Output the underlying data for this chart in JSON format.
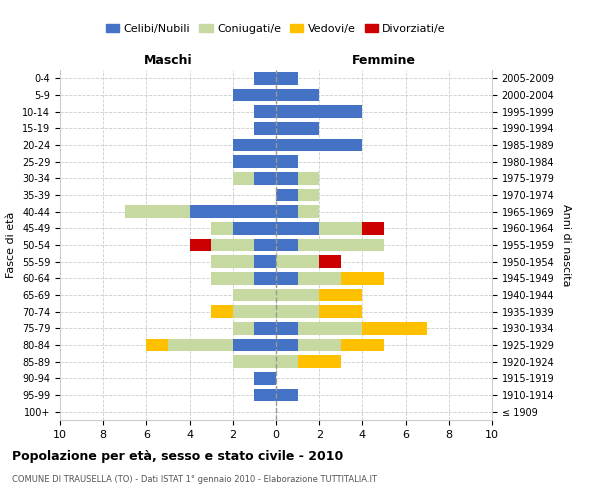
{
  "age_groups": [
    "100+",
    "95-99",
    "90-94",
    "85-89",
    "80-84",
    "75-79",
    "70-74",
    "65-69",
    "60-64",
    "55-59",
    "50-54",
    "45-49",
    "40-44",
    "35-39",
    "30-34",
    "25-29",
    "20-24",
    "15-19",
    "10-14",
    "5-9",
    "0-4"
  ],
  "birth_years": [
    "≤ 1909",
    "1910-1914",
    "1915-1919",
    "1920-1924",
    "1925-1929",
    "1930-1934",
    "1935-1939",
    "1940-1944",
    "1945-1949",
    "1950-1954",
    "1955-1959",
    "1960-1964",
    "1965-1969",
    "1970-1974",
    "1975-1979",
    "1980-1984",
    "1985-1989",
    "1990-1994",
    "1995-1999",
    "2000-2004",
    "2005-2009"
  ],
  "males": {
    "celibi": [
      0,
      1,
      1,
      0,
      2,
      1,
      0,
      0,
      1,
      1,
      1,
      2,
      4,
      0,
      1,
      2,
      2,
      1,
      1,
      2,
      1
    ],
    "coniugati": [
      0,
      0,
      0,
      2,
      3,
      1,
      2,
      2,
      2,
      2,
      2,
      1,
      3,
      0,
      1,
      0,
      0,
      0,
      0,
      0,
      0
    ],
    "vedovi": [
      0,
      0,
      0,
      0,
      1,
      0,
      1,
      0,
      0,
      0,
      0,
      0,
      0,
      0,
      0,
      0,
      0,
      0,
      0,
      0,
      0
    ],
    "divorziati": [
      0,
      0,
      0,
      0,
      0,
      0,
      0,
      0,
      0,
      0,
      1,
      0,
      0,
      0,
      0,
      0,
      0,
      0,
      0,
      0,
      0
    ]
  },
  "females": {
    "nubili": [
      0,
      1,
      0,
      0,
      1,
      1,
      0,
      0,
      1,
      0,
      1,
      2,
      1,
      1,
      1,
      1,
      4,
      2,
      4,
      2,
      1
    ],
    "coniugate": [
      0,
      0,
      0,
      1,
      2,
      3,
      2,
      2,
      2,
      2,
      4,
      2,
      1,
      1,
      1,
      0,
      0,
      0,
      0,
      0,
      0
    ],
    "vedove": [
      0,
      0,
      0,
      2,
      2,
      3,
      2,
      2,
      2,
      0,
      0,
      0,
      0,
      0,
      0,
      0,
      0,
      0,
      0,
      0,
      0
    ],
    "divorziate": [
      0,
      0,
      0,
      0,
      0,
      0,
      0,
      0,
      0,
      1,
      0,
      1,
      0,
      0,
      0,
      0,
      0,
      0,
      0,
      0,
      0
    ]
  },
  "color_celibi": "#4472c4",
  "color_coniugati": "#c6d9a0",
  "color_vedovi": "#ffc000",
  "color_divorziati": "#cc0000",
  "title": "Popolazione per età, sesso e stato civile - 2010",
  "subtitle": "COMUNE DI TRAUSELLA (TO) - Dati ISTAT 1° gennaio 2010 - Elaborazione TUTTITALIA.IT",
  "xlabel_left": "Maschi",
  "xlabel_right": "Femmine",
  "ylabel_left": "Fasce di età",
  "ylabel_right": "Anni di nascita",
  "xlim": 10,
  "bg_color": "#ffffff",
  "grid_color": "#cccccc"
}
